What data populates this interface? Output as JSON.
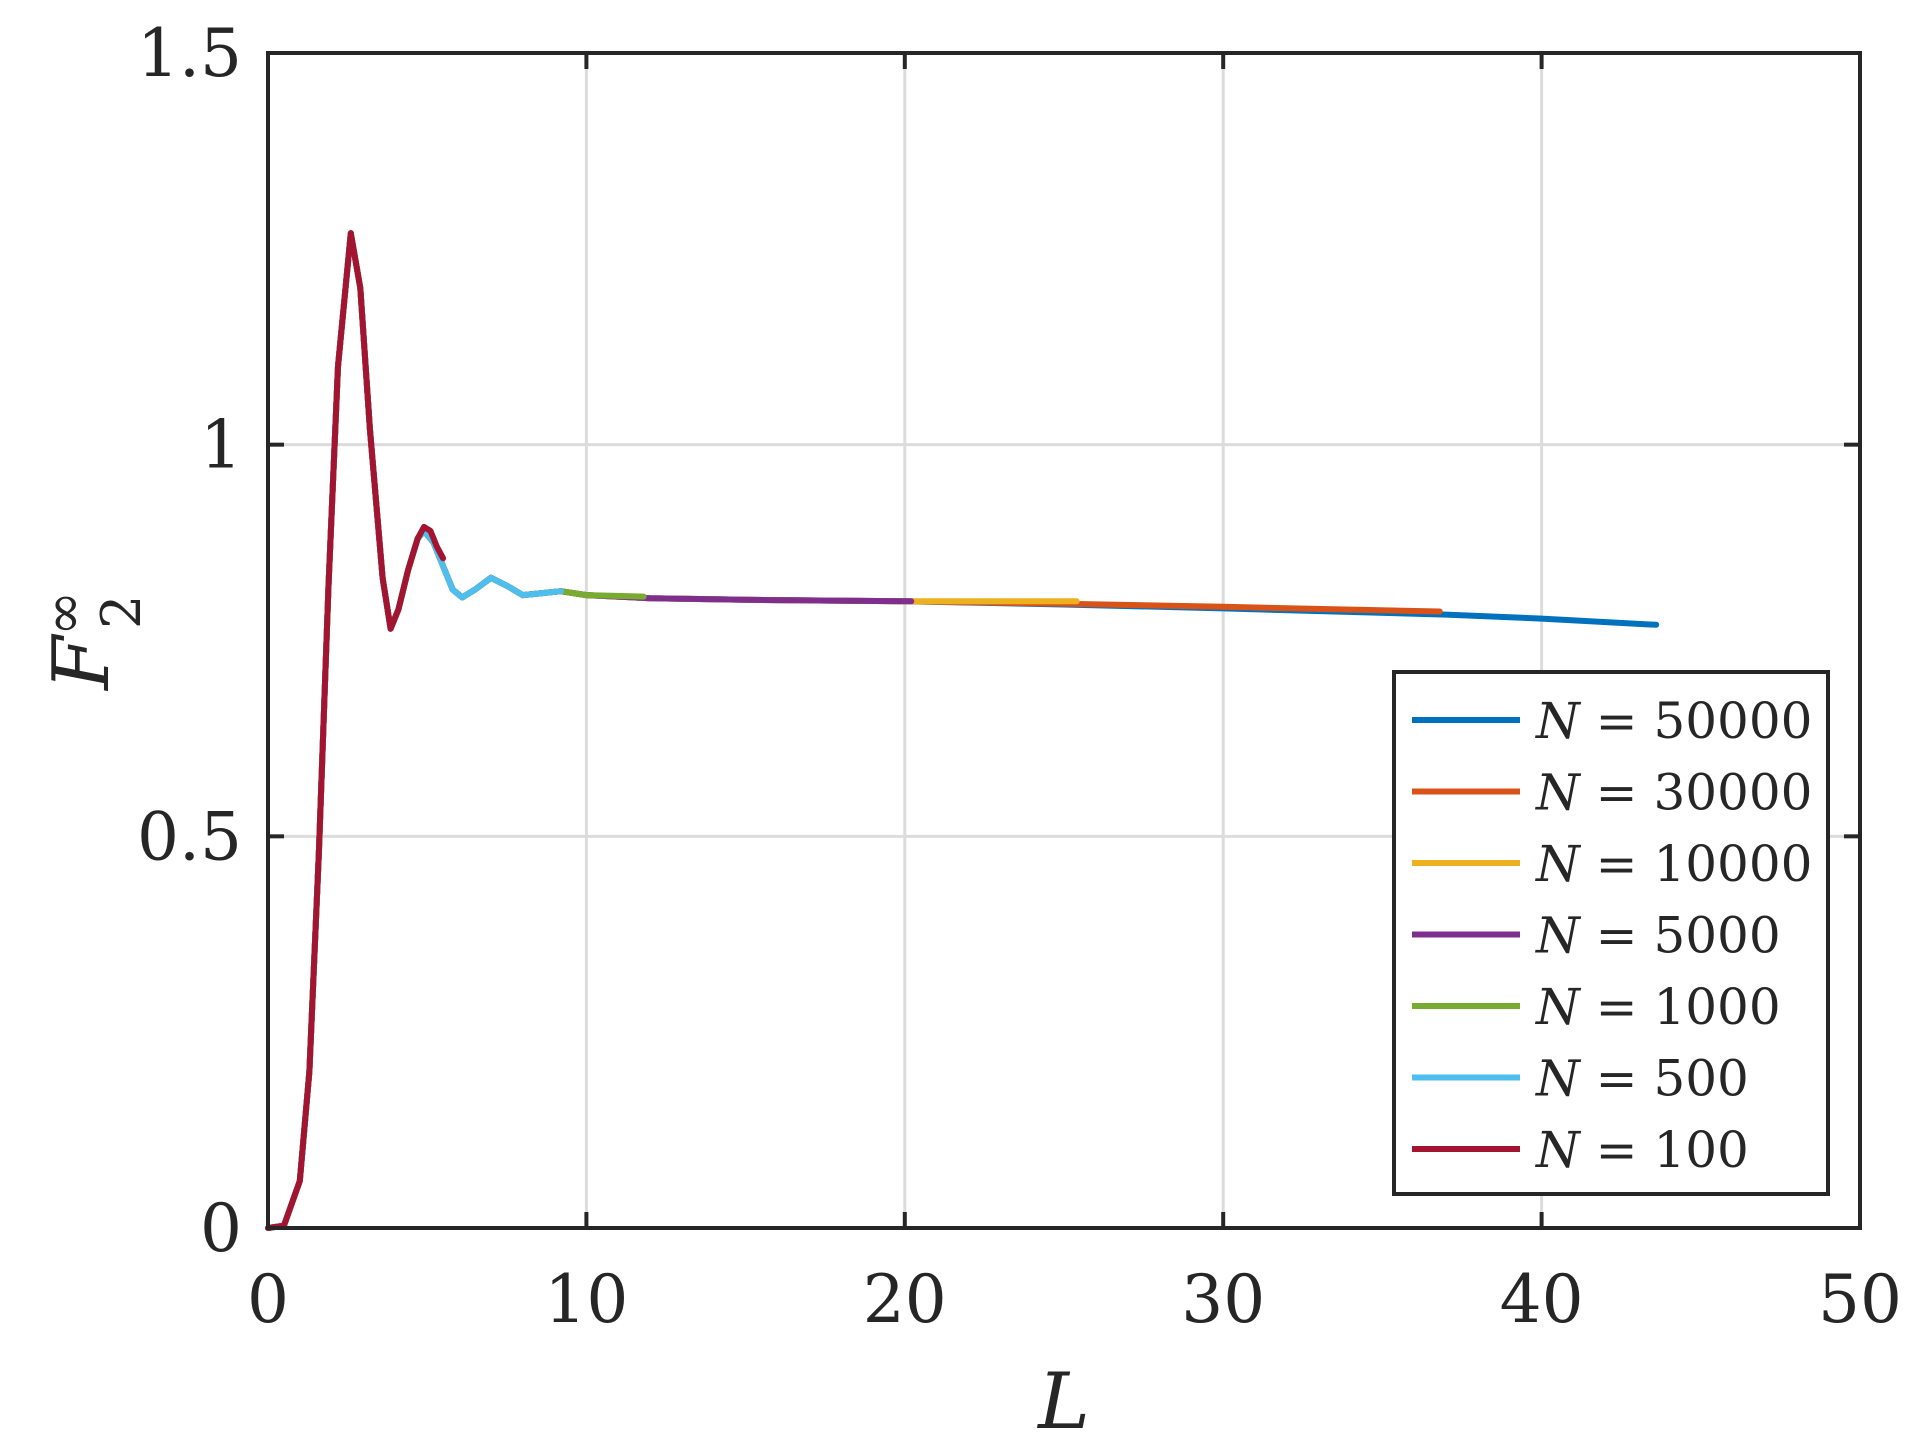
{
  "chart_data": {
    "type": "line",
    "xlabel": "L",
    "ylabel": "F",
    "ylabel_superscript": "∞",
    "ylabel_subscript": "2",
    "xlim": [
      0,
      50
    ],
    "ylim": [
      0,
      1.5
    ],
    "x_ticks": [
      "0",
      "10",
      "20",
      "30",
      "40",
      "50"
    ],
    "y_ticks": [
      "0",
      "0.5",
      "1",
      "1.5"
    ],
    "grid": true,
    "legend_position": "bottom-right",
    "legend_var": "N",
    "legend_eq": " = ",
    "series": [
      {
        "name": "N = 50000",
        "value": "50000",
        "color": "#0072BD",
        "points": [
          [
            0,
            0
          ],
          [
            0.5,
            0.003
          ],
          [
            1.0,
            0.06
          ],
          [
            1.3,
            0.2
          ],
          [
            1.6,
            0.48
          ],
          [
            1.9,
            0.82
          ],
          [
            2.2,
            1.1
          ],
          [
            2.6,
            1.27
          ],
          [
            2.9,
            1.2
          ],
          [
            3.2,
            1.02
          ],
          [
            3.6,
            0.83
          ],
          [
            3.85,
            0.765
          ],
          [
            4.1,
            0.79
          ],
          [
            4.4,
            0.84
          ],
          [
            4.7,
            0.88
          ],
          [
            4.9,
            0.89
          ],
          [
            5.2,
            0.875
          ],
          [
            5.5,
            0.845
          ],
          [
            5.8,
            0.815
          ],
          [
            6.1,
            0.805
          ],
          [
            6.5,
            0.815
          ],
          [
            7.0,
            0.83
          ],
          [
            7.5,
            0.82
          ],
          [
            8.0,
            0.808
          ],
          [
            8.5,
            0.81
          ],
          [
            9.2,
            0.813
          ],
          [
            10,
            0.808
          ],
          [
            12,
            0.804
          ],
          [
            15,
            0.802
          ],
          [
            20,
            0.8
          ],
          [
            25,
            0.796
          ],
          [
            30,
            0.791
          ],
          [
            37,
            0.783
          ],
          [
            40,
            0.778
          ],
          [
            43.6,
            0.77
          ]
        ]
      },
      {
        "name": "N = 30000",
        "value": "30000",
        "color": "#D95319",
        "points": [
          [
            0,
            0
          ],
          [
            0.5,
            0.003
          ],
          [
            1.0,
            0.06
          ],
          [
            1.3,
            0.2
          ],
          [
            1.6,
            0.48
          ],
          [
            1.9,
            0.82
          ],
          [
            2.2,
            1.1
          ],
          [
            2.6,
            1.27
          ],
          [
            2.9,
            1.2
          ],
          [
            3.2,
            1.02
          ],
          [
            3.6,
            0.83
          ],
          [
            3.85,
            0.765
          ],
          [
            4.1,
            0.79
          ],
          [
            4.4,
            0.84
          ],
          [
            4.7,
            0.88
          ],
          [
            4.9,
            0.89
          ],
          [
            5.2,
            0.875
          ],
          [
            5.5,
            0.845
          ],
          [
            5.8,
            0.815
          ],
          [
            6.1,
            0.805
          ],
          [
            6.5,
            0.815
          ],
          [
            7.0,
            0.83
          ],
          [
            7.5,
            0.82
          ],
          [
            8.0,
            0.808
          ],
          [
            8.5,
            0.81
          ],
          [
            9.2,
            0.813
          ],
          [
            10,
            0.808
          ],
          [
            12,
            0.804
          ],
          [
            15,
            0.802
          ],
          [
            20,
            0.8
          ],
          [
            25,
            0.797
          ],
          [
            30,
            0.793
          ],
          [
            36.8,
            0.787
          ]
        ]
      },
      {
        "name": "N = 10000",
        "value": "10000",
        "color": "#EDB120",
        "points": [
          [
            0,
            0
          ],
          [
            0.5,
            0.003
          ],
          [
            1.0,
            0.06
          ],
          [
            1.3,
            0.2
          ],
          [
            1.6,
            0.48
          ],
          [
            1.9,
            0.82
          ],
          [
            2.2,
            1.1
          ],
          [
            2.6,
            1.27
          ],
          [
            2.9,
            1.2
          ],
          [
            3.2,
            1.02
          ],
          [
            3.6,
            0.83
          ],
          [
            3.85,
            0.765
          ],
          [
            4.1,
            0.79
          ],
          [
            4.4,
            0.84
          ],
          [
            4.7,
            0.88
          ],
          [
            4.9,
            0.89
          ],
          [
            5.2,
            0.875
          ],
          [
            5.5,
            0.845
          ],
          [
            5.8,
            0.815
          ],
          [
            6.1,
            0.805
          ],
          [
            6.5,
            0.815
          ],
          [
            7.0,
            0.83
          ],
          [
            7.5,
            0.82
          ],
          [
            8.0,
            0.808
          ],
          [
            8.5,
            0.81
          ],
          [
            9.2,
            0.813
          ],
          [
            10,
            0.808
          ],
          [
            12,
            0.804
          ],
          [
            15,
            0.802
          ],
          [
            20,
            0.8
          ],
          [
            25.4,
            0.8
          ]
        ]
      },
      {
        "name": "N = 5000",
        "value": "5000",
        "color": "#7E2F8E",
        "points": [
          [
            0,
            0
          ],
          [
            0.5,
            0.003
          ],
          [
            1.0,
            0.06
          ],
          [
            1.3,
            0.2
          ],
          [
            1.6,
            0.48
          ],
          [
            1.9,
            0.82
          ],
          [
            2.2,
            1.1
          ],
          [
            2.6,
            1.27
          ],
          [
            2.9,
            1.2
          ],
          [
            3.2,
            1.02
          ],
          [
            3.6,
            0.83
          ],
          [
            3.85,
            0.765
          ],
          [
            4.1,
            0.79
          ],
          [
            4.4,
            0.84
          ],
          [
            4.7,
            0.88
          ],
          [
            4.9,
            0.89
          ],
          [
            5.2,
            0.875
          ],
          [
            5.5,
            0.845
          ],
          [
            5.8,
            0.815
          ],
          [
            6.1,
            0.805
          ],
          [
            6.5,
            0.815
          ],
          [
            7.0,
            0.83
          ],
          [
            7.5,
            0.82
          ],
          [
            8.0,
            0.808
          ],
          [
            8.5,
            0.81
          ],
          [
            9.2,
            0.813
          ],
          [
            10,
            0.808
          ],
          [
            12,
            0.804
          ],
          [
            15,
            0.802
          ],
          [
            20.2,
            0.8
          ]
        ]
      },
      {
        "name": "N = 1000",
        "value": "1000",
        "color": "#77AC30",
        "points": [
          [
            0,
            0
          ],
          [
            0.5,
            0.003
          ],
          [
            1.0,
            0.06
          ],
          [
            1.3,
            0.2
          ],
          [
            1.6,
            0.48
          ],
          [
            1.9,
            0.82
          ],
          [
            2.2,
            1.1
          ],
          [
            2.6,
            1.27
          ],
          [
            2.9,
            1.2
          ],
          [
            3.2,
            1.02
          ],
          [
            3.6,
            0.83
          ],
          [
            3.85,
            0.765
          ],
          [
            4.1,
            0.79
          ],
          [
            4.4,
            0.84
          ],
          [
            4.7,
            0.88
          ],
          [
            4.9,
            0.89
          ],
          [
            5.2,
            0.875
          ],
          [
            5.5,
            0.845
          ],
          [
            5.8,
            0.815
          ],
          [
            6.1,
            0.805
          ],
          [
            6.5,
            0.815
          ],
          [
            7.0,
            0.83
          ],
          [
            7.5,
            0.82
          ],
          [
            8.0,
            0.808
          ],
          [
            8.5,
            0.81
          ],
          [
            9.2,
            0.813
          ],
          [
            10,
            0.808
          ],
          [
            11.8,
            0.806
          ]
        ]
      },
      {
        "name": "N = 500",
        "value": "500",
        "color": "#4DBEEE",
        "points": [
          [
            0,
            0
          ],
          [
            0.5,
            0.003
          ],
          [
            1.0,
            0.06
          ],
          [
            1.3,
            0.2
          ],
          [
            1.6,
            0.48
          ],
          [
            1.9,
            0.82
          ],
          [
            2.2,
            1.1
          ],
          [
            2.6,
            1.27
          ],
          [
            2.9,
            1.2
          ],
          [
            3.2,
            1.02
          ],
          [
            3.6,
            0.83
          ],
          [
            3.85,
            0.765
          ],
          [
            4.1,
            0.79
          ],
          [
            4.4,
            0.84
          ],
          [
            4.7,
            0.88
          ],
          [
            4.9,
            0.89
          ],
          [
            5.2,
            0.875
          ],
          [
            5.5,
            0.845
          ],
          [
            5.8,
            0.815
          ],
          [
            6.1,
            0.805
          ],
          [
            6.5,
            0.815
          ],
          [
            7.0,
            0.83
          ],
          [
            7.5,
            0.82
          ],
          [
            8.0,
            0.808
          ],
          [
            8.5,
            0.81
          ],
          [
            9.2,
            0.813
          ]
        ]
      },
      {
        "name": "N = 100",
        "value": "100",
        "color": "#A2142F",
        "points": [
          [
            0,
            0
          ],
          [
            0.5,
            0.003
          ],
          [
            1.0,
            0.06
          ],
          [
            1.3,
            0.2
          ],
          [
            1.6,
            0.48
          ],
          [
            1.9,
            0.82
          ],
          [
            2.2,
            1.1
          ],
          [
            2.6,
            1.27
          ],
          [
            2.9,
            1.2
          ],
          [
            3.2,
            1.02
          ],
          [
            3.6,
            0.83
          ],
          [
            3.85,
            0.765
          ],
          [
            4.1,
            0.79
          ],
          [
            4.4,
            0.84
          ],
          [
            4.7,
            0.88
          ],
          [
            4.9,
            0.895
          ],
          [
            5.1,
            0.89
          ],
          [
            5.3,
            0.87
          ],
          [
            5.5,
            0.855
          ]
        ]
      }
    ]
  }
}
